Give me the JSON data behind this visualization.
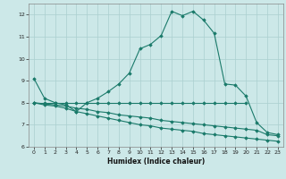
{
  "xlabel": "Humidex (Indice chaleur)",
  "background_color": "#cce8e8",
  "line_color": "#1a7a6a",
  "grid_color": "#aacfcf",
  "xlim": [
    -0.5,
    23.5
  ],
  "ylim": [
    6,
    12.5
  ],
  "yticks": [
    6,
    7,
    8,
    9,
    10,
    11,
    12
  ],
  "xticks": [
    0,
    1,
    2,
    3,
    4,
    5,
    6,
    7,
    8,
    9,
    10,
    11,
    12,
    13,
    14,
    15,
    16,
    17,
    18,
    19,
    20,
    21,
    22,
    23
  ],
  "series": [
    {
      "x": [
        0,
        1,
        2,
        3,
        4,
        5,
        6,
        7,
        8,
        9,
        10,
        11,
        12,
        13,
        14,
        15,
        16,
        17,
        18,
        19,
        20,
        21,
        22,
        23
      ],
      "y": [
        9.1,
        8.2,
        8.0,
        7.9,
        7.6,
        8.0,
        8.2,
        8.5,
        8.85,
        9.35,
        10.45,
        10.65,
        11.05,
        12.15,
        11.95,
        12.15,
        11.75,
        11.15,
        8.85,
        8.8,
        8.3,
        7.1,
        6.65,
        6.55
      ]
    },
    {
      "x": [
        0,
        1,
        2,
        3,
        4,
        5,
        6,
        7,
        8,
        9,
        10,
        11,
        12,
        13,
        14,
        15,
        16,
        17,
        18,
        19,
        20
      ],
      "y": [
        8.0,
        8.0,
        8.0,
        8.0,
        8.0,
        8.0,
        8.0,
        8.0,
        8.0,
        8.0,
        8.0,
        8.0,
        8.0,
        8.0,
        8.0,
        8.0,
        8.0,
        8.0,
        8.0,
        8.0,
        8.0
      ]
    },
    {
      "x": [
        0,
        1,
        2,
        3,
        4,
        5,
        6,
        7,
        8,
        9,
        10,
        11,
        12,
        13,
        14,
        15,
        16,
        17,
        18,
        19,
        20,
        21,
        22,
        23
      ],
      "y": [
        8.0,
        7.95,
        7.9,
        7.85,
        7.75,
        7.7,
        7.6,
        7.55,
        7.45,
        7.4,
        7.35,
        7.3,
        7.2,
        7.15,
        7.1,
        7.05,
        7.0,
        6.95,
        6.9,
        6.85,
        6.8,
        6.75,
        6.55,
        6.5
      ]
    },
    {
      "x": [
        0,
        1,
        2,
        3,
        4,
        5,
        6,
        7,
        8,
        9,
        10,
        11,
        12,
        13,
        14,
        15,
        16,
        17,
        18,
        19,
        20,
        21,
        22,
        23
      ],
      "y": [
        8.0,
        7.9,
        7.85,
        7.75,
        7.6,
        7.5,
        7.4,
        7.3,
        7.2,
        7.1,
        7.0,
        6.95,
        6.85,
        6.8,
        6.75,
        6.7,
        6.6,
        6.55,
        6.5,
        6.45,
        6.4,
        6.35,
        6.3,
        6.25
      ]
    }
  ]
}
